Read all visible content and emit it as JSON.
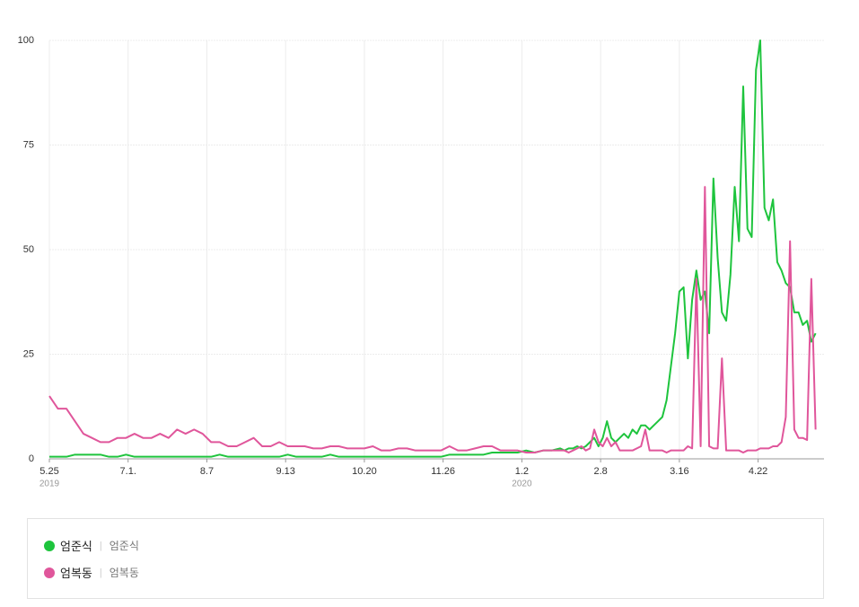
{
  "chart_data": {
    "type": "line",
    "x": [
      0,
      4,
      8,
      12,
      16,
      20,
      24,
      28,
      32,
      36,
      40,
      44,
      48,
      52,
      56,
      60,
      64,
      68,
      72,
      76,
      80,
      84,
      88,
      92,
      96,
      100,
      104,
      108,
      112,
      116,
      120,
      124,
      128,
      132,
      136,
      140,
      144,
      148,
      152,
      156,
      160,
      164,
      168,
      172,
      176,
      180,
      184,
      188,
      192,
      196,
      200,
      204,
      208,
      212,
      216,
      220,
      224,
      228,
      232,
      236,
      240,
      242,
      244,
      246,
      248,
      250,
      252,
      254,
      256,
      258,
      260,
      262,
      264,
      266,
      268,
      270,
      272,
      274,
      276,
      278,
      280,
      282,
      284,
      286,
      288,
      290,
      292,
      294,
      296,
      298,
      300,
      302,
      304,
      306,
      308,
      310,
      312,
      314,
      316,
      318,
      320,
      322,
      324,
      326,
      328,
      330,
      332,
      334,
      336,
      338,
      340,
      342,
      344,
      346,
      348,
      350,
      352,
      354,
      356,
      358,
      360
    ],
    "xlim": [
      0,
      361
    ],
    "xticks": [
      {
        "value": 0,
        "label": "5.25"
      },
      {
        "value": 37,
        "label": "7.1."
      },
      {
        "value": 74,
        "label": "8.7"
      },
      {
        "value": 111,
        "label": "9.13"
      },
      {
        "value": 148,
        "label": "10.20"
      },
      {
        "value": 185,
        "label": "11.26"
      },
      {
        "value": 222,
        "label": "1.2"
      },
      {
        "value": 259,
        "label": "2.8"
      },
      {
        "value": 296,
        "label": "3.16"
      },
      {
        "value": 333,
        "label": "4.22"
      }
    ],
    "year_labels": [
      {
        "value": 0,
        "label": "2019"
      },
      {
        "value": 222,
        "label": "2020"
      }
    ],
    "ylim": [
      0,
      100
    ],
    "yticks": [
      0,
      25,
      50,
      75,
      100
    ],
    "grid": true,
    "series": [
      {
        "name": "엄준식",
        "keywords": "엄준식",
        "color": "#1ec43d",
        "values": [
          0.5,
          0.5,
          0.5,
          1,
          1,
          1,
          1,
          0.5,
          0.5,
          1,
          0.5,
          0.5,
          0.5,
          0.5,
          0.5,
          0.5,
          0.5,
          0.5,
          0.5,
          0.5,
          1,
          0.5,
          0.5,
          0.5,
          0.5,
          0.5,
          0.5,
          0.5,
          1,
          0.5,
          0.5,
          0.5,
          0.5,
          1,
          0.5,
          0.5,
          0.5,
          0.5,
          0.5,
          0.5,
          0.5,
          0.5,
          0.5,
          0.5,
          0.5,
          0.5,
          0.5,
          1,
          1,
          1,
          1,
          1,
          1.5,
          1.5,
          1.5,
          1.5,
          2,
          1.5,
          2,
          2,
          2.5,
          2,
          2.5,
          2.5,
          3,
          2.5,
          3,
          4,
          5,
          3,
          5,
          9,
          5,
          4,
          5,
          6,
          5,
          7,
          6,
          8,
          8,
          7,
          8,
          9,
          10,
          14,
          22,
          30,
          40,
          41,
          24,
          38,
          45,
          38,
          40,
          30,
          67,
          48,
          35,
          33,
          44,
          65,
          52,
          89,
          55,
          53,
          93,
          100,
          60,
          57,
          62,
          47,
          45,
          42,
          41,
          35,
          35,
          32,
          33,
          28,
          30
        ]
      },
      {
        "name": "엄복동",
        "keywords": "엄복동",
        "color": "#e0569b",
        "values": [
          15,
          12,
          12,
          9,
          6,
          5,
          4,
          4,
          5,
          5,
          6,
          5,
          5,
          6,
          5,
          7,
          6,
          7,
          6,
          4,
          4,
          3,
          3,
          4,
          5,
          3,
          3,
          4,
          3,
          3,
          3,
          2.5,
          2.5,
          3,
          3,
          2.5,
          2.5,
          2.5,
          3,
          2,
          2,
          2.5,
          2.5,
          2,
          2,
          2,
          2,
          3,
          2,
          2,
          2.5,
          3,
          3,
          2,
          2,
          2,
          1.5,
          1.5,
          2,
          2,
          2,
          2,
          1.5,
          2,
          2.5,
          3,
          2,
          2.5,
          7,
          4,
          3,
          5,
          3,
          4,
          2,
          2,
          2,
          2,
          2.5,
          3,
          7,
          2,
          2,
          2,
          2,
          1.5,
          2,
          2,
          2,
          2,
          3,
          2.5,
          43,
          3,
          65,
          3,
          2.5,
          2.5,
          24,
          2,
          2,
          2,
          2,
          1.5,
          2,
          2,
          2,
          2.5,
          2.5,
          2.5,
          3,
          3,
          4,
          10,
          52,
          7,
          5,
          5,
          4.5,
          43,
          7
        ]
      }
    ]
  }
}
